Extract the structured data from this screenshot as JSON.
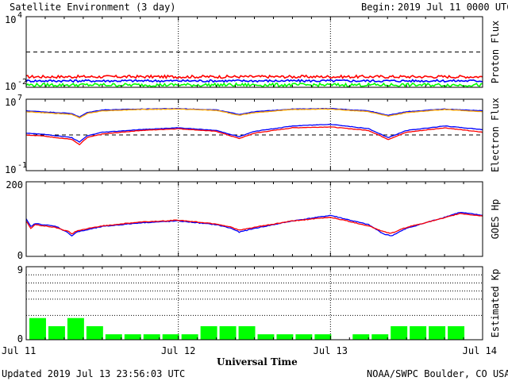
{
  "header": {
    "title": "Satellite Environment (3 day)",
    "begin_label": "Begin:",
    "begin_value": "2019 Jul 11 0000 UTC"
  },
  "footer": {
    "updated": "Updated 2019 Jul 13 23:56:03 UTC",
    "credit": "NOAA/SWPC Boulder, CO USA",
    "xlabel": "Universal Time"
  },
  "x_ticks": [
    "Jul 11",
    "Jul 12",
    "Jul 13",
    "Jul 14"
  ],
  "colors": {
    "red": "#ff0000",
    "blue": "#0000ff",
    "green": "#00ff00",
    "orange": "#ffa500",
    "frame": "#000000"
  },
  "chart_data": [
    {
      "type": "line",
      "ylabel": "Proton Flux",
      "ytick_labels": [
        "10",
        "10"
      ],
      "ytick_exponents": [
        "4",
        "-2"
      ],
      "ylim_log10": [
        -2,
        4
      ],
      "threshold_log10": 1,
      "x_days": [
        0,
        0.25,
        0.5,
        0.75,
        1,
        1.25,
        1.5,
        1.75,
        2,
        2.25,
        2.5,
        2.75,
        3
      ],
      "series": [
        {
          "color": "red",
          "values_log10": [
            -1.1,
            -1.1,
            -1.1,
            -1.1,
            -1.1,
            -1.1,
            -1.1,
            -1.1,
            -1.1,
            -1.1,
            -1.1,
            -1.1,
            -1.1
          ],
          "noise": 0.12
        },
        {
          "color": "blue",
          "values_log10": [
            -1.45,
            -1.45,
            -1.45,
            -1.45,
            -1.45,
            -1.45,
            -1.45,
            -1.45,
            -1.45,
            -1.45,
            -1.45,
            -1.45,
            -1.45
          ],
          "noise": 0.1
        },
        {
          "color": "green",
          "values_log10": [
            -1.8,
            -1.8,
            -1.8,
            -1.8,
            -1.8,
            -1.8,
            -1.8,
            -1.8,
            -1.8,
            -1.8,
            -1.8,
            -1.8,
            -1.8
          ],
          "noise": 0.14
        }
      ]
    },
    {
      "type": "line",
      "ylabel": "Electron Flux",
      "ytick_labels": [
        "10",
        "10"
      ],
      "ytick_exponents": [
        "7",
        "-1"
      ],
      "ylim_log10": [
        -1,
        7
      ],
      "threshold_log10": 3,
      "x_days": [
        0,
        0.1,
        0.2,
        0.3,
        0.35,
        0.4,
        0.5,
        0.75,
        1,
        1.25,
        1.4,
        1.5,
        1.75,
        2,
        2.25,
        2.38,
        2.5,
        2.75,
        3
      ],
      "series": [
        {
          "color": "blue",
          "values_log10": [
            5.7,
            5.6,
            5.5,
            5.4,
            5.0,
            5.5,
            5.8,
            5.9,
            5.95,
            5.8,
            5.3,
            5.6,
            5.9,
            5.95,
            5.7,
            5.2,
            5.6,
            5.9,
            5.7
          ]
        },
        {
          "color": "orange",
          "values_log10": [
            5.6,
            5.5,
            5.4,
            5.3,
            4.9,
            5.4,
            5.7,
            5.85,
            5.9,
            5.75,
            5.2,
            5.5,
            5.85,
            5.9,
            5.6,
            5.1,
            5.5,
            5.85,
            5.6
          ]
        },
        {
          "color": "blue",
          "values_log10": [
            3.2,
            3.1,
            2.9,
            2.7,
            2.2,
            2.9,
            3.3,
            3.6,
            3.8,
            3.5,
            2.8,
            3.4,
            4.0,
            4.2,
            3.7,
            2.7,
            3.5,
            4.0,
            3.6
          ]
        },
        {
          "color": "red",
          "values_log10": [
            3.0,
            2.9,
            2.7,
            2.5,
            1.9,
            2.7,
            3.1,
            3.5,
            3.7,
            3.4,
            2.6,
            3.2,
            3.8,
            3.9,
            3.5,
            2.5,
            3.3,
            3.8,
            3.3
          ]
        }
      ]
    },
    {
      "type": "line",
      "ylabel": "GOES Hp",
      "ytick_labels": [
        "200",
        "0"
      ],
      "ylim": [
        0,
        200
      ],
      "x_days": [
        0,
        0.03,
        0.06,
        0.2,
        0.28,
        0.3,
        0.33,
        0.5,
        0.75,
        1,
        1.25,
        1.35,
        1.4,
        1.5,
        1.75,
        2,
        2.25,
        2.35,
        2.4,
        2.5,
        2.75,
        2.85,
        3
      ],
      "series": [
        {
          "color": "blue",
          "values": [
            100,
            80,
            88,
            80,
            62,
            55,
            65,
            80,
            90,
            95,
            85,
            75,
            65,
            75,
            95,
            110,
            85,
            60,
            55,
            75,
            105,
            118,
            110
          ]
        },
        {
          "color": "red",
          "values": [
            95,
            75,
            85,
            77,
            66,
            60,
            68,
            82,
            92,
            97,
            87,
            78,
            70,
            78,
            95,
            105,
            82,
            66,
            62,
            78,
            103,
            115,
            108
          ]
        }
      ]
    },
    {
      "type": "bar",
      "ylabel": "Estimated Kp",
      "ytick_labels": [
        "9",
        "0"
      ],
      "ylim": [
        0,
        9
      ],
      "values": [
        2.67,
        1.67,
        2.67,
        1.67,
        0.67,
        0.67,
        0.67,
        0.67,
        0.67,
        1.67,
        1.67,
        1.67,
        0.67,
        0.67,
        0.67,
        0.67,
        0.0,
        0.67,
        0.67,
        1.67,
        1.67,
        1.67,
        1.67
      ]
    }
  ]
}
